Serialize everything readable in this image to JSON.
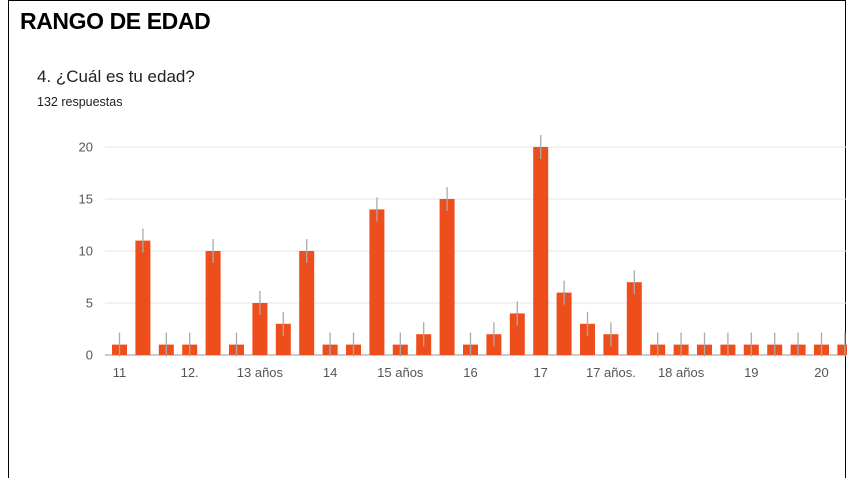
{
  "section": {
    "title": "RANGO DE EDAD"
  },
  "question": {
    "text": "4. ¿Cuál es tu edad?",
    "responses": "132 respuestas"
  },
  "colors": {
    "bar": "#ee4e1b",
    "error": "#aaaaaa",
    "grid": "#e6e6e6"
  },
  "chart_data": {
    "type": "bar",
    "title": "",
    "xlabel": "",
    "ylabel": "",
    "ylim": [
      0,
      20
    ],
    "yticks": [
      0,
      5,
      10,
      15,
      20
    ],
    "grid": true,
    "values": [
      1,
      11,
      1,
      1,
      10,
      1,
      5,
      3,
      10,
      1,
      1,
      14,
      1,
      2,
      15,
      1,
      2,
      4,
      20,
      6,
      3,
      2,
      7,
      1,
      1,
      1,
      1,
      1,
      1,
      1,
      1,
      1
    ],
    "x_tick_labels": [
      {
        "label": "11",
        "at_bar": 0
      },
      {
        "label": "12.",
        "at_bar": 3
      },
      {
        "label": "13 años",
        "at_bar": 6
      },
      {
        "label": "14",
        "at_bar": 9
      },
      {
        "label": "15 años",
        "at_bar": 12
      },
      {
        "label": "16",
        "at_bar": 15
      },
      {
        "label": "17",
        "at_bar": 18
      },
      {
        "label": "17 años.",
        "at_bar": 21
      },
      {
        "label": "18 años",
        "at_bar": 24
      },
      {
        "label": "19",
        "at_bar": 27
      },
      {
        "label": "20",
        "at_bar": 30
      }
    ]
  }
}
